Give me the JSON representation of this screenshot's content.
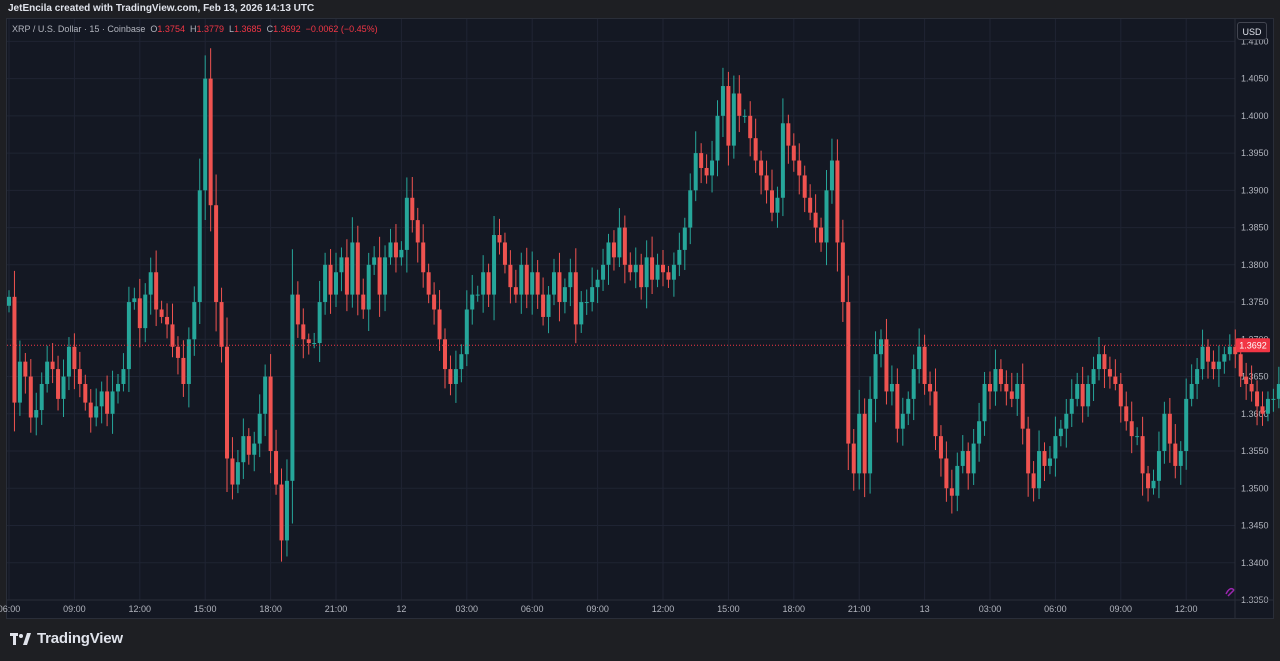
{
  "header": {
    "attribution": "JetEncila created with TradingView.com, Feb 13, 2026 14:13 UTC"
  },
  "legend": {
    "symbol": "XRP / U.S. Dollar · 15 · Coinbase",
    "open_label": "O",
    "open": "1.3754",
    "high_label": "H",
    "high": "1.3779",
    "low_label": "L",
    "low": "1.3685",
    "close_label": "C",
    "close": "1.3692",
    "change": "−0.0062 (−0.45%)"
  },
  "currency_button": "USD",
  "footer": {
    "brand": "TradingView"
  },
  "colors": {
    "up": "#26a69a",
    "down": "#ef5350",
    "background": "#141823",
    "grid": "#1f2433",
    "price_line": "#f23645"
  },
  "chart_data": {
    "type": "candlestick",
    "interval": "15",
    "ylim": [
      1.335,
      1.413
    ],
    "yticks": [
      "1.4100",
      "1.4050",
      "1.4000",
      "1.3950",
      "1.3900",
      "1.3850",
      "1.3800",
      "1.3750",
      "1.3700",
      "1.3650",
      "1.3600",
      "1.3550",
      "1.3500",
      "1.3450",
      "1.3400",
      "1.3350"
    ],
    "xticks": [
      "06:00",
      "09:00",
      "12:00",
      "15:00",
      "18:00",
      "21:00",
      "12",
      "03:00",
      "06:00",
      "09:00",
      "12:00",
      "15:00",
      "18:00",
      "21:00",
      "13",
      "03:00",
      "06:00",
      "09:00",
      "12:00"
    ],
    "xtick_bar_index": [
      0,
      12,
      24,
      36,
      48,
      60,
      72,
      84,
      96,
      108,
      120,
      132,
      144,
      156,
      168,
      180,
      192,
      204,
      216
    ],
    "last_price": "1.3692",
    "last_price_value": 1.3692,
    "closes": [
      1.3757,
      1.3615,
      1.367,
      1.365,
      1.3595,
      1.3605,
      1.364,
      1.367,
      1.366,
      1.362,
      1.365,
      1.369,
      1.366,
      1.364,
      1.3615,
      1.3595,
      1.361,
      1.363,
      1.36,
      1.363,
      1.364,
      1.366,
      1.375,
      1.3755,
      1.3715,
      1.376,
      1.379,
      1.374,
      1.373,
      1.372,
      1.369,
      1.3675,
      1.364,
      1.37,
      1.375,
      1.39,
      1.405,
      1.388,
      1.375,
      1.369,
      1.354,
      1.3505,
      1.3535,
      1.357,
      1.3545,
      1.356,
      1.36,
      1.365,
      1.355,
      1.3505,
      1.343,
      1.351,
      1.376,
      1.372,
      1.37,
      1.3695,
      1.3695,
      1.375,
      1.38,
      1.376,
      1.379,
      1.381,
      1.376,
      1.383,
      1.376,
      1.374,
      1.38,
      1.381,
      1.376,
      1.381,
      1.383,
      1.381,
      1.382,
      1.389,
      1.386,
      1.383,
      1.379,
      1.376,
      1.374,
      1.37,
      1.366,
      1.364,
      1.366,
      1.368,
      1.374,
      1.376,
      1.376,
      1.379,
      1.376,
      1.384,
      1.383,
      1.38,
      1.377,
      1.376,
      1.38,
      1.376,
      1.379,
      1.376,
      1.373,
      1.376,
      1.379,
      1.375,
      1.377,
      1.379,
      1.372,
      1.375,
      1.375,
      1.377,
      1.378,
      1.38,
      1.383,
      1.381,
      1.385,
      1.38,
      1.379,
      1.38,
      1.377,
      1.381,
      1.378,
      1.38,
      1.379,
      1.378,
      1.38,
      1.382,
      1.385,
      1.39,
      1.395,
      1.393,
      1.392,
      1.394,
      1.4,
      1.404,
      1.396,
      1.403,
      1.4,
      1.4,
      1.397,
      1.394,
      1.392,
      1.39,
      1.387,
      1.389,
      1.399,
      1.396,
      1.394,
      1.392,
      1.389,
      1.387,
      1.385,
      1.383,
      1.39,
      1.394,
      1.383,
      1.375,
      1.356,
      1.352,
      1.36,
      1.352,
      1.362,
      1.368,
      1.37,
      1.363,
      1.364,
      1.358,
      1.36,
      1.362,
      1.366,
      1.369,
      1.364,
      1.363,
      1.357,
      1.354,
      1.35,
      1.349,
      1.353,
      1.355,
      1.352,
      1.356,
      1.359,
      1.364,
      1.363,
      1.366,
      1.364,
      1.363,
      1.362,
      1.364,
      1.358,
      1.352,
      1.35,
      1.355,
      1.353,
      1.354,
      1.357,
      1.358,
      1.36,
      1.362,
      1.364,
      1.361,
      1.364,
      1.366,
      1.368,
      1.366,
      1.365,
      1.364,
      1.361,
      1.359,
      1.357,
      1.357,
      1.352,
      1.35,
      1.351,
      1.355,
      1.36,
      1.356,
      1.353,
      1.355,
      1.362,
      1.364,
      1.366,
      1.369,
      1.367,
      1.366,
      1.367,
      1.368,
      1.369,
      1.368,
      1.365,
      1.364,
      1.363,
      1.361,
      1.36,
      1.362,
      1.362,
      1.364,
      1.374,
      1.375,
      1.3692
    ]
  }
}
